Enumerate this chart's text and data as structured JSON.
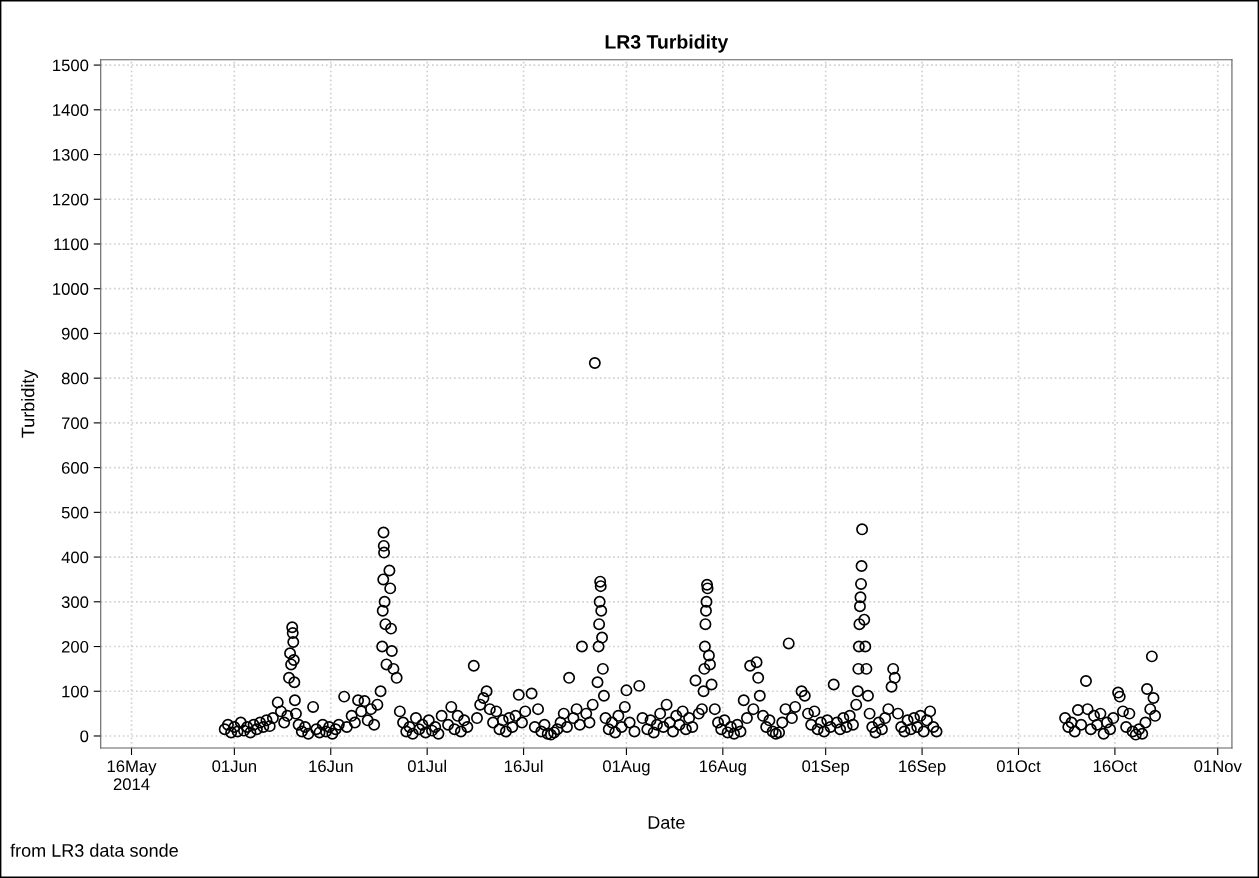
{
  "chart_data": {
    "type": "scatter",
    "title": "LR3 Turbidity",
    "xlabel": "Date",
    "ylabel": "Turbidity",
    "annotations": [
      "from LR3 data sonde"
    ],
    "xlim": [
      "2014-05-11T05:00",
      "2014-11-03T05:00"
    ],
    "xticks": [
      {
        "value": "2014-05-16",
        "label": "16May\n2014"
      },
      {
        "value": "2014-06-01",
        "label": "01Jun"
      },
      {
        "value": "2014-06-16",
        "label": "16Jun"
      },
      {
        "value": "2014-07-01",
        "label": "01Jul"
      },
      {
        "value": "2014-07-16",
        "label": "16Jul"
      },
      {
        "value": "2014-08-01",
        "label": "01Aug"
      },
      {
        "value": "2014-08-16",
        "label": "16Aug"
      },
      {
        "value": "2014-09-01",
        "label": "01Sep"
      },
      {
        "value": "2014-09-16",
        "label": "16Sep"
      },
      {
        "value": "2014-10-01",
        "label": "01Oct"
      },
      {
        "value": "2014-10-16",
        "label": "16Oct"
      },
      {
        "value": "2014-11-01",
        "label": "01Nov"
      }
    ],
    "ylim": [
      -27,
      1512
    ],
    "yticks": [
      0,
      100,
      200,
      300,
      400,
      500,
      600,
      700,
      800,
      900,
      1000,
      1100,
      1200,
      1300,
      1400,
      1500
    ],
    "grid": true,
    "marker": "circle",
    "series": [
      {
        "color": "#000000",
        "x": [
          "2014-05-30T12:00",
          "2014-05-31T00:00",
          "2014-05-31T12:00",
          "2014-06-01T00:00",
          "2014-06-01T12:00",
          "2014-06-02T00:00",
          "2014-06-02T12:00",
          "2014-06-03T00:00",
          "2014-06-03T12:00",
          "2014-06-04T00:00",
          "2014-06-04T12:00",
          "2014-06-05T00:00",
          "2014-06-05T12:00",
          "2014-06-06T00:00",
          "2014-06-06T12:00",
          "2014-06-07T00:00",
          "2014-06-07T18:00",
          "2014-06-08T06:00",
          "2014-06-08T18:00",
          "2014-06-09T06:00",
          "2014-06-09T12:00",
          "2014-06-09T16:00",
          "2014-06-09T20:00",
          "2014-06-10T00:00",
          "2014-06-10T02:00",
          "2014-06-10T04:00",
          "2014-06-10T06:00",
          "2014-06-10T08:00",
          "2014-06-10T10:00",
          "2014-06-10T14:00",
          "2014-06-11T00:00",
          "2014-06-11T12:00",
          "2014-06-12T00:00",
          "2014-06-12T12:00",
          "2014-06-13T06:00",
          "2014-06-13T18:00",
          "2014-06-14T06:00",
          "2014-06-14T18:00",
          "2014-06-15T06:00",
          "2014-06-15T18:00",
          "2014-06-16T06:00",
          "2014-06-16T18:00",
          "2014-06-17T06:00",
          "2014-06-18T02:00",
          "2014-06-18T12:00",
          "2014-06-19T06:00",
          "2014-06-19T18:00",
          "2014-06-20T06:00",
          "2014-06-20T18:00",
          "2014-06-21T06:00",
          "2014-06-21T18:00",
          "2014-06-22T06:00",
          "2014-06-22T18:00",
          "2014-06-23T06:00",
          "2014-06-23T18:00",
          "2014-06-24T00:00",
          "2014-06-24T02:00",
          "2014-06-24T04:00",
          "2014-06-24T05:00",
          "2014-06-24T06:00",
          "2014-06-24T07:00",
          "2014-06-24T09:00",
          "2014-06-24T12:00",
          "2014-06-24T16:00",
          "2014-06-25T03:00",
          "2014-06-25T06:00",
          "2014-06-25T09:00",
          "2014-06-25T12:00",
          "2014-06-25T18:00",
          "2014-06-26T06:00",
          "2014-06-26T18:00",
          "2014-06-27T06:00",
          "2014-06-27T18:00",
          "2014-06-28T06:00",
          "2014-06-28T18:00",
          "2014-06-29T06:00",
          "2014-06-29T18:00",
          "2014-06-30T06:00",
          "2014-06-30T18:00",
          "2014-07-01T06:00",
          "2014-07-01T18:00",
          "2014-07-02T06:00",
          "2014-07-02T18:00",
          "2014-07-03T06:00",
          "2014-07-04T06:00",
          "2014-07-04T18:00",
          "2014-07-05T06:00",
          "2014-07-05T18:00",
          "2014-07-06T06:00",
          "2014-07-06T18:00",
          "2014-07-07T06:00",
          "2014-07-08T06:00",
          "2014-07-08T18:00",
          "2014-07-09T06:00",
          "2014-07-09T18:00",
          "2014-07-10T06:00",
          "2014-07-10T18:00",
          "2014-07-11T06:00",
          "2014-07-11T18:00",
          "2014-07-12T06:00",
          "2014-07-12T18:00",
          "2014-07-13T06:00",
          "2014-07-13T18:00",
          "2014-07-14T06:00",
          "2014-07-14T18:00",
          "2014-07-15T06:00",
          "2014-07-15T18:00",
          "2014-07-16T06:00",
          "2014-07-17T06:00",
          "2014-07-17T18:00",
          "2014-07-18T06:00",
          "2014-07-18T18:00",
          "2014-07-19T06:00",
          "2014-07-19T18:00",
          "2014-07-20T06:00",
          "2014-07-20T18:00",
          "2014-07-21T06:00",
          "2014-07-21T18:00",
          "2014-07-22T06:00",
          "2014-07-22T18:00",
          "2014-07-23T02:00",
          "2014-07-23T18:00",
          "2014-07-24T06:00",
          "2014-07-24T18:00",
          "2014-07-25T02:00",
          "2014-07-25T18:00",
          "2014-07-26T06:00",
          "2014-07-26T18:00",
          "2014-07-27T02:00",
          "2014-07-27T12:00",
          "2014-07-27T16:00",
          "2014-07-27T18:00",
          "2014-07-27T20:00",
          "2014-07-27T22:00",
          "2014-07-28T00:00",
          "2014-07-28T02:00",
          "2014-07-28T05:00",
          "2014-07-28T08:00",
          "2014-07-28T12:00",
          "2014-07-28T18:00",
          "2014-07-29T06:00",
          "2014-07-29T18:00",
          "2014-07-30T06:00",
          "2014-07-30T18:00",
          "2014-07-31T06:00",
          "2014-07-31T18:00",
          "2014-08-01T00:00",
          "2014-08-01T12:00",
          "2014-08-02T06:00",
          "2014-08-03T00:00",
          "2014-08-03T12:00",
          "2014-08-04T06:00",
          "2014-08-04T18:00",
          "2014-08-05T06:00",
          "2014-08-05T18:00",
          "2014-08-06T06:00",
          "2014-08-06T18:00",
          "2014-08-07T06:00",
          "2014-08-07T18:00",
          "2014-08-08T06:00",
          "2014-08-08T18:00",
          "2014-08-09T06:00",
          "2014-08-09T18:00",
          "2014-08-10T06:00",
          "2014-08-10T18:00",
          "2014-08-11T06:00",
          "2014-08-11T18:00",
          "2014-08-12T06:00",
          "2014-08-12T18:00",
          "2014-08-13T00:00",
          "2014-08-13T03:00",
          "2014-08-13T05:00",
          "2014-08-13T07:00",
          "2014-08-13T09:00",
          "2014-08-13T11:00",
          "2014-08-13T13:00",
          "2014-08-13T15:00",
          "2014-08-13T20:00",
          "2014-08-14T00:00",
          "2014-08-14T06:00",
          "2014-08-14T18:00",
          "2014-08-15T06:00",
          "2014-08-15T18:00",
          "2014-08-16T06:00",
          "2014-08-16T18:00",
          "2014-08-17T06:00",
          "2014-08-17T18:00",
          "2014-08-18T06:00",
          "2014-08-18T18:00",
          "2014-08-19T06:00",
          "2014-08-19T18:00",
          "2014-08-20T06:00",
          "2014-08-20T18:00",
          "2014-08-21T06:00",
          "2014-08-21T12:00",
          "2014-08-21T18:00",
          "2014-08-22T06:00",
          "2014-08-22T18:00",
          "2014-08-23T06:00",
          "2014-08-23T18:00",
          "2014-08-24T06:00",
          "2014-08-24T18:00",
          "2014-08-25T06:00",
          "2014-08-25T18:00",
          "2014-08-26T06:00",
          "2014-08-26T18:00",
          "2014-08-27T06:00",
          "2014-08-28T06:00",
          "2014-08-28T18:00",
          "2014-08-29T06:00",
          "2014-08-29T18:00",
          "2014-08-30T06:00",
          "2014-08-30T18:00",
          "2014-08-31T06:00",
          "2014-08-31T18:00",
          "2014-09-01T06:00",
          "2014-09-01T18:00",
          "2014-09-02T06:00",
          "2014-09-02T18:00",
          "2014-09-03T06:00",
          "2014-09-03T18:00",
          "2014-09-04T06:00",
          "2014-09-04T18:00",
          "2014-09-05T06:00",
          "2014-09-05T18:00",
          "2014-09-06T00:00",
          "2014-09-06T02:00",
          "2014-09-06T04:00",
          "2014-09-06T06:00",
          "2014-09-06T08:00",
          "2014-09-06T10:00",
          "2014-09-06T12:00",
          "2014-09-06T14:00",
          "2014-09-06T16:00",
          "2014-09-07T00:00",
          "2014-09-07T04:00",
          "2014-09-07T08:00",
          "2014-09-07T14:00",
          "2014-09-07T20:00",
          "2014-09-08T06:00",
          "2014-09-08T18:00",
          "2014-09-09T06:00",
          "2014-09-09T18:00",
          "2014-09-10T06:00",
          "2014-09-10T18:00",
          "2014-09-11T06:00",
          "2014-09-11T12:00",
          "2014-09-11T18:00",
          "2014-09-12T06:00",
          "2014-09-12T18:00",
          "2014-09-13T06:00",
          "2014-09-13T18:00",
          "2014-09-14T06:00",
          "2014-09-14T18:00",
          "2014-09-15T06:00",
          "2014-09-15T18:00",
          "2014-09-16T06:00",
          "2014-09-16T18:00",
          "2014-09-17T06:00",
          "2014-09-17T18:00",
          "2014-09-18T06:00",
          "2014-10-08T06:00",
          "2014-10-08T18:00",
          "2014-10-09T06:00",
          "2014-10-09T18:00",
          "2014-10-10T06:00",
          "2014-10-10T18:00",
          "2014-10-11T12:00",
          "2014-10-11T18:00",
          "2014-10-12T06:00",
          "2014-10-12T18:00",
          "2014-10-13T06:00",
          "2014-10-13T18:00",
          "2014-10-14T06:00",
          "2014-10-14T18:00",
          "2014-10-15T06:00",
          "2014-10-15T18:00",
          "2014-10-16T12:00",
          "2014-10-16T18:00",
          "2014-10-17T06:00",
          "2014-10-17T18:00",
          "2014-10-18T06:00",
          "2014-10-18T18:00",
          "2014-10-19T06:00",
          "2014-10-19T18:00",
          "2014-10-20T06:00",
          "2014-10-20T18:00",
          "2014-10-21T00:00",
          "2014-10-21T12:00",
          "2014-10-21T18:00",
          "2014-10-22T00:00",
          "2014-10-22T06:00"
        ],
        "values": [
          15,
          25,
          8,
          20,
          10,
          30,
          12,
          20,
          8,
          25,
          15,
          30,
          20,
          35,
          22,
          40,
          75,
          55,
          30,
          45,
          130,
          185,
          160,
          243,
          230,
          210,
          170,
          120,
          80,
          50,
          25,
          10,
          20,
          5,
          65,
          15,
          8,
          25,
          10,
          20,
          5,
          15,
          25,
          88,
          20,
          45,
          30,
          80,
          55,
          78,
          35,
          60,
          25,
          70,
          100,
          200,
          280,
          350,
          455,
          425,
          410,
          300,
          250,
          160,
          370,
          330,
          240,
          190,
          150,
          130,
          55,
          30,
          10,
          20,
          5,
          40,
          15,
          25,
          8,
          35,
          12,
          20,
          5,
          45,
          25,
          65,
          15,
          45,
          10,
          35,
          20,
          157,
          40,
          70,
          85,
          100,
          60,
          30,
          55,
          15,
          35,
          10,
          40,
          20,
          45,
          92,
          30,
          55,
          95,
          20,
          60,
          10,
          25,
          5,
          3,
          8,
          15,
          30,
          50,
          20,
          130,
          40,
          60,
          25,
          200,
          50,
          30,
          70,
          834,
          120,
          200,
          250,
          300,
          345,
          335,
          280,
          220,
          150,
          90,
          40,
          15,
          30,
          8,
          45,
          20,
          65,
          102,
          30,
          10,
          112,
          40,
          15,
          35,
          8,
          25,
          50,
          20,
          70,
          30,
          10,
          45,
          25,
          55,
          15,
          40,
          20,
          124,
          50,
          60,
          100,
          150,
          200,
          250,
          280,
          300,
          338,
          330,
          180,
          160,
          115,
          60,
          30,
          15,
          35,
          8,
          20,
          5,
          25,
          10,
          80,
          40,
          157,
          60,
          165,
          130,
          90,
          45,
          20,
          35,
          10,
          5,
          8,
          30,
          60,
          207,
          40,
          65,
          100,
          90,
          50,
          25,
          55,
          15,
          30,
          10,
          35,
          20,
          115,
          30,
          15,
          40,
          20,
          45,
          25,
          70,
          100,
          150,
          200,
          250,
          290,
          310,
          340,
          380,
          462,
          260,
          200,
          150,
          90,
          50,
          20,
          8,
          30,
          15,
          40,
          60,
          110,
          150,
          130,
          50,
          20,
          10,
          35,
          15,
          40,
          20,
          45,
          10,
          35,
          55,
          20,
          10,
          40,
          20,
          30,
          10,
          58,
          25,
          123,
          60,
          15,
          45,
          25,
          50,
          5,
          30,
          15,
          40,
          97,
          88,
          55,
          20,
          50,
          10,
          3,
          15,
          5,
          30,
          105,
          60,
          178,
          85,
          45
        ]
      }
    ]
  }
}
